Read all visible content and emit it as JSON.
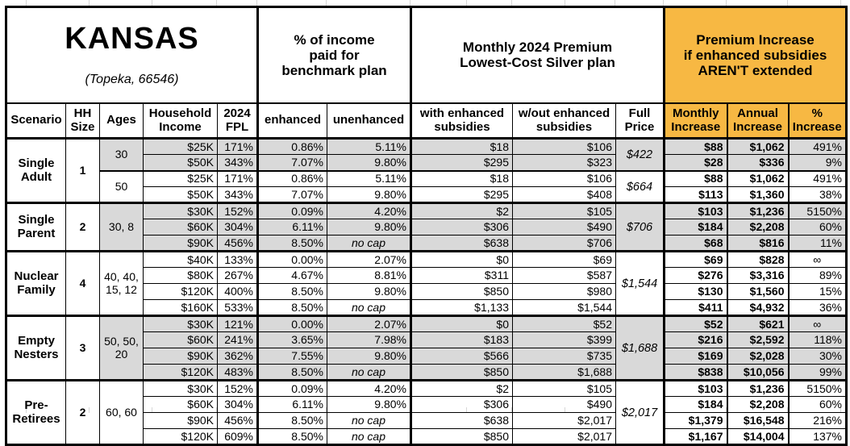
{
  "location": {
    "title": "KANSAS",
    "subtitle": "(Topeka, 66546)"
  },
  "colors": {
    "accent_orange": "#F7B843",
    "row_shade_gray": "#D9D9D9"
  },
  "group_headers": {
    "pct_income": "% of income\npaid for\nbenchmark plan",
    "premium": "Monthly 2024 Premium\nLowest-Cost Silver plan",
    "increase": "Premium Increase\nif enhanced subsidies\nAREN'T extended"
  },
  "columns": {
    "scenario": "Scenario",
    "hh_size": "HH\nSize",
    "ages": "Ages",
    "income": "Household\nIncome",
    "fpl": "2024\nFPL",
    "enhanced": "enhanced",
    "unenhanced": "unenhanced",
    "with_sub": "with enhanced\nsubsidies",
    "wout_sub": "w/out enhanced\nsubsidies",
    "full_price": "Full\nPrice",
    "monthly": "Monthly\nIncrease",
    "annual": "Annual\nIncrease",
    "pct": "%\nIncrease"
  },
  "groups": [
    {
      "scenario": "Single Adult",
      "hh_size": "1",
      "subgroups": [
        {
          "ages": "30",
          "shaded": true,
          "full_price": "$422",
          "rows": [
            {
              "income": "$25K",
              "fpl": "171%",
              "enhanced": "0.86%",
              "unenhanced": "5.11%",
              "with_sub": "$18",
              "wout_sub": "$106",
              "monthly": "$88",
              "annual": "$1,062",
              "pct": "491%"
            },
            {
              "income": "$50K",
              "fpl": "343%",
              "enhanced": "7.07%",
              "unenhanced": "9.80%",
              "with_sub": "$295",
              "wout_sub": "$323",
              "monthly": "$28",
              "annual": "$336",
              "pct": "9%"
            }
          ]
        },
        {
          "ages": "50",
          "shaded": false,
          "full_price": "$664",
          "rows": [
            {
              "income": "$25K",
              "fpl": "171%",
              "enhanced": "0.86%",
              "unenhanced": "5.11%",
              "with_sub": "$18",
              "wout_sub": "$106",
              "monthly": "$88",
              "annual": "$1,062",
              "pct": "491%"
            },
            {
              "income": "$50K",
              "fpl": "343%",
              "enhanced": "7.07%",
              "unenhanced": "9.80%",
              "with_sub": "$295",
              "wout_sub": "$408",
              "monthly": "$113",
              "annual": "$1,360",
              "pct": "38%"
            }
          ]
        }
      ]
    },
    {
      "scenario": "Single Parent",
      "hh_size": "2",
      "subgroups": [
        {
          "ages": "30, 8",
          "shaded": true,
          "full_price": "$706",
          "rows": [
            {
              "income": "$30K",
              "fpl": "152%",
              "enhanced": "0.09%",
              "unenhanced": "4.20%",
              "with_sub": "$2",
              "wout_sub": "$105",
              "monthly": "$103",
              "annual": "$1,236",
              "pct": "5150%"
            },
            {
              "income": "$60K",
              "fpl": "304%",
              "enhanced": "6.11%",
              "unenhanced": "9.80%",
              "with_sub": "$306",
              "wout_sub": "$490",
              "monthly": "$184",
              "annual": "$2,208",
              "pct": "60%"
            },
            {
              "income": "$90K",
              "fpl": "456%",
              "enhanced": "8.50%",
              "unenhanced": "no cap",
              "with_sub": "$638",
              "wout_sub": "$706",
              "monthly": "$68",
              "annual": "$816",
              "pct": "11%"
            }
          ]
        }
      ]
    },
    {
      "scenario": "Nuclear Family",
      "hh_size": "4",
      "subgroups": [
        {
          "ages": "40, 40, 15, 12",
          "shaded": false,
          "full_price": "$1,544",
          "rows": [
            {
              "income": "$40K",
              "fpl": "133%",
              "enhanced": "0.00%",
              "unenhanced": "2.07%",
              "with_sub": "$0",
              "wout_sub": "$69",
              "monthly": "$69",
              "annual": "$828",
              "pct": "∞"
            },
            {
              "income": "$80K",
              "fpl": "267%",
              "enhanced": "4.67%",
              "unenhanced": "8.81%",
              "with_sub": "$311",
              "wout_sub": "$587",
              "monthly": "$276",
              "annual": "$3,316",
              "pct": "89%"
            },
            {
              "income": "$120K",
              "fpl": "400%",
              "enhanced": "8.50%",
              "unenhanced": "9.80%",
              "with_sub": "$850",
              "wout_sub": "$980",
              "monthly": "$130",
              "annual": "$1,560",
              "pct": "15%"
            },
            {
              "income": "$160K",
              "fpl": "533%",
              "enhanced": "8.50%",
              "unenhanced": "no cap",
              "with_sub": "$1,133",
              "wout_sub": "$1,544",
              "monthly": "$411",
              "annual": "$4,932",
              "pct": "36%"
            }
          ]
        }
      ]
    },
    {
      "scenario": "Empty Nesters",
      "hh_size": "3",
      "subgroups": [
        {
          "ages": "50, 50, 20",
          "shaded": true,
          "full_price": "$1,688",
          "rows": [
            {
              "income": "$30K",
              "fpl": "121%",
              "enhanced": "0.00%",
              "unenhanced": "2.07%",
              "with_sub": "$0",
              "wout_sub": "$52",
              "monthly": "$52",
              "annual": "$621",
              "pct": "∞"
            },
            {
              "income": "$60K",
              "fpl": "241%",
              "enhanced": "3.65%",
              "unenhanced": "7.98%",
              "with_sub": "$183",
              "wout_sub": "$399",
              "monthly": "$216",
              "annual": "$2,592",
              "pct": "118%"
            },
            {
              "income": "$90K",
              "fpl": "362%",
              "enhanced": "7.55%",
              "unenhanced": "9.80%",
              "with_sub": "$566",
              "wout_sub": "$735",
              "monthly": "$169",
              "annual": "$2,028",
              "pct": "30%"
            },
            {
              "income": "$120K",
              "fpl": "483%",
              "enhanced": "8.50%",
              "unenhanced": "no cap",
              "with_sub": "$850",
              "wout_sub": "$1,688",
              "monthly": "$838",
              "annual": "$10,056",
              "pct": "99%"
            }
          ]
        }
      ]
    },
    {
      "scenario": "Pre-Retirees",
      "hh_size": "2",
      "subgroups": [
        {
          "ages": "60, 60",
          "shaded": false,
          "full_price": "$2,017",
          "rows": [
            {
              "income": "$30K",
              "fpl": "152%",
              "enhanced": "0.09%",
              "unenhanced": "4.20%",
              "with_sub": "$2",
              "wout_sub": "$105",
              "monthly": "$103",
              "annual": "$1,236",
              "pct": "5150%"
            },
            {
              "income": "$60K",
              "fpl": "304%",
              "enhanced": "6.11%",
              "unenhanced": "9.80%",
              "with_sub": "$306",
              "wout_sub": "$490",
              "monthly": "$184",
              "annual": "$2,208",
              "pct": "60%"
            },
            {
              "income": "$90K",
              "fpl": "456%",
              "enhanced": "8.50%",
              "unenhanced": "no cap",
              "with_sub": "$638",
              "wout_sub": "$2,017",
              "monthly": "$1,379",
              "annual": "$16,548",
              "pct": "216%"
            },
            {
              "income": "$120K",
              "fpl": "609%",
              "enhanced": "8.50%",
              "unenhanced": "no cap",
              "with_sub": "$850",
              "wout_sub": "$2,017",
              "monthly": "$1,167",
              "annual": "$14,004",
              "pct": "137%"
            }
          ]
        }
      ]
    }
  ]
}
